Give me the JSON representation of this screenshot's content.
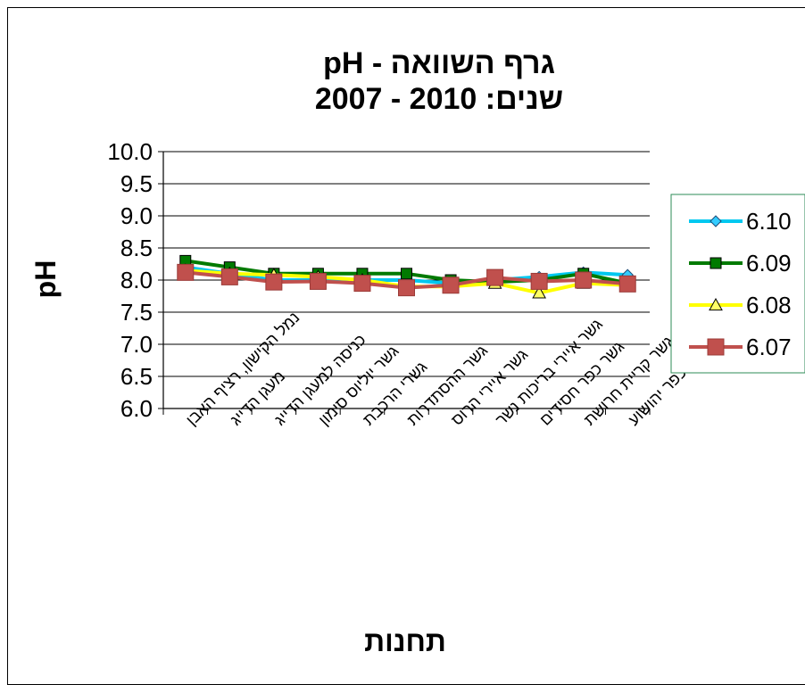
{
  "chart_data": {
    "type": "line",
    "title_line1": "גרף השוואה -  pH",
    "title_line2": "שנים:  2010 - 2007",
    "ylabel": "pH",
    "xlabel": "תחנות",
    "ylim": [
      6.0,
      10.0
    ],
    "ytick_step": 0.5,
    "grid": true,
    "legend_position": "right",
    "categories": [
      "נמל הקישון,  רציף האבן",
      "מעגן הדייג",
      "כניסה למעגן הדייג",
      "גשר יוליוס סימון",
      "גשרי הרכבת",
      "גשר ההסתדרות",
      "גשר איירי הרוס",
      "גשר איירי בריכות נשר",
      "גשר כפר חסידים",
      "גשר קריית חרושת",
      "גשר כפר יהושוע"
    ],
    "series": [
      {
        "name": "6.10",
        "color": "#00c8f0",
        "marker": "diamond",
        "marker_fill": "#33ccff",
        "values": [
          8.2,
          8.1,
          8.0,
          8.0,
          8.0,
          8.0,
          7.95,
          8.0,
          8.05,
          8.12,
          8.08
        ]
      },
      {
        "name": "6.09",
        "color": "#007a00",
        "marker": "square",
        "marker_fill": "#007a00",
        "values": [
          8.3,
          8.2,
          8.1,
          8.1,
          8.1,
          8.1,
          8.0,
          7.97,
          8.0,
          8.1,
          7.95
        ]
      },
      {
        "name": "6.08",
        "color": "#ffff00",
        "marker": "triangle",
        "marker_fill": "#ffff66",
        "values": [
          8.15,
          8.1,
          8.08,
          8.05,
          8.0,
          7.9,
          7.9,
          7.95,
          7.8,
          7.95,
          7.92
        ]
      },
      {
        "name": "6.07",
        "color": "#c0504d",
        "marker": "square-big",
        "marker_fill": "#c0504d",
        "values": [
          8.12,
          8.05,
          7.97,
          7.98,
          7.95,
          7.88,
          7.92,
          8.04,
          7.98,
          8.0,
          7.94
        ]
      }
    ]
  }
}
